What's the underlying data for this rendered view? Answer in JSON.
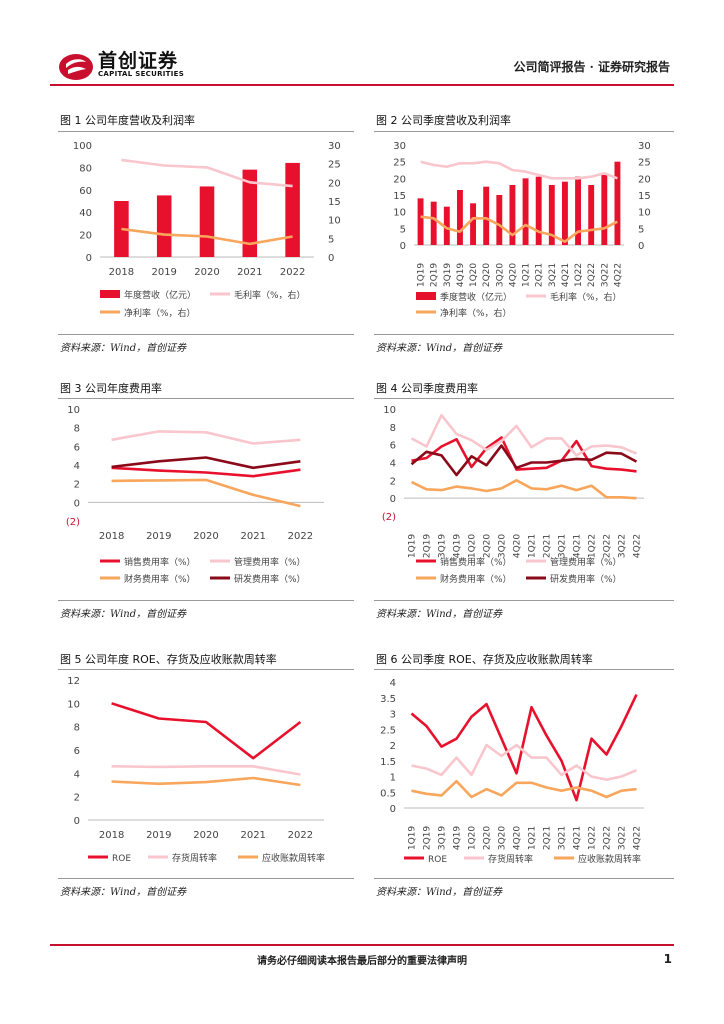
{
  "header": {
    "logo_cn": "首创证券",
    "logo_en": "CAPITAL SECURITIES",
    "report_type": "公司简评报告 · 证券研究报告"
  },
  "footer": {
    "disclaimer": "请务必仔细阅读本报告最后部分的重要法律声明",
    "page": "1"
  },
  "figures": [
    {
      "title": "图 1 公司年度营收及利润率",
      "source": "资料来源：Wind，首创证券"
    },
    {
      "title": "图 2 公司季度营收及利润率",
      "source": "资料来源：Wind，首创证券"
    },
    {
      "title": "图 3 公司年度费用率",
      "source": "资料来源：Wind，首创证券"
    },
    {
      "title": "图 4 公司季度费用率",
      "source": "资料来源：Wind，首创证券"
    },
    {
      "title": "图 5 公司年度 ROE、存货及应收账款周转率",
      "source": "资料来源：Wind，首创证券"
    },
    {
      "title": "图 6 公司季度 ROE、存货及应收账款周转率",
      "source": "资料来源：Wind，首创证券"
    }
  ],
  "colors": {
    "brand": "#c8102e",
    "red": "#e8112d",
    "pink": "#f8c6cc",
    "orange": "#f7a65c",
    "darkred": "#8b0a1a"
  },
  "chart_data": [
    {
      "id": "c1",
      "type": "bar",
      "categories": [
        "2018",
        "2019",
        "2020",
        "2021",
        "2022"
      ],
      "bars": [
        {
          "name": "年度营收（亿元）",
          "values": [
            50,
            55,
            63,
            78,
            84
          ],
          "axis": "left",
          "color": "#e8112d"
        }
      ],
      "series": [
        {
          "name": "毛利率（%，右）",
          "values": [
            26,
            24.5,
            24,
            20,
            19
          ],
          "axis": "right",
          "color": "#f8c6cc"
        },
        {
          "name": "净利率（%，右）",
          "values": [
            7.5,
            6,
            5.5,
            3.5,
            5.5
          ],
          "axis": "right",
          "color": "#f7a65c"
        }
      ],
      "ylim": [
        0,
        100
      ],
      "yticks": [
        0,
        20,
        40,
        60,
        80,
        100
      ],
      "y2lim": [
        0,
        30
      ],
      "y2ticks": [
        0,
        5,
        10,
        15,
        20,
        25,
        30
      ]
    },
    {
      "id": "c2",
      "type": "bar",
      "categories": [
        "1Q19",
        "2Q19",
        "3Q19",
        "4Q19",
        "1Q20",
        "2Q20",
        "3Q20",
        "4Q20",
        "1Q21",
        "2Q21",
        "3Q21",
        "4Q21",
        "1Q22",
        "2Q22",
        "3Q22",
        "4Q22"
      ],
      "bars": [
        {
          "name": "季度营收（亿元）",
          "values": [
            14,
            13,
            11.5,
            16.5,
            12.5,
            17.5,
            15,
            18,
            20,
            20.5,
            18,
            19,
            20.5,
            18,
            21,
            25
          ],
          "axis": "left",
          "color": "#e8112d"
        }
      ],
      "series": [
        {
          "name": "毛利率（%，右）",
          "values": [
            25,
            24,
            23.5,
            24.5,
            24.5,
            25,
            24.5,
            22.5,
            22,
            21,
            20,
            20,
            20,
            20.5,
            21.5,
            20
          ],
          "axis": "right",
          "color": "#f8c6cc"
        },
        {
          "name": "净利率（%，右）",
          "values": [
            8.5,
            8,
            5,
            4,
            8,
            8,
            6,
            3,
            6,
            4,
            3,
            1,
            4,
            4.5,
            5,
            7
          ],
          "axis": "right",
          "color": "#f7a65c"
        }
      ],
      "ylim": [
        0,
        30
      ],
      "yticks": [
        0,
        5,
        10,
        15,
        20,
        25,
        30
      ],
      "y2lim": [
        0,
        30
      ],
      "y2ticks": [
        0,
        5,
        10,
        15,
        20,
        25,
        30
      ]
    },
    {
      "id": "c3",
      "type": "line",
      "categories": [
        "2018",
        "2019",
        "2020",
        "2021",
        "2022"
      ],
      "series": [
        {
          "name": "销售费用率（%）",
          "values": [
            3.7,
            3.4,
            3.2,
            2.8,
            3.5
          ],
          "color": "#e8112d"
        },
        {
          "name": "管理费用率（%）",
          "values": [
            6.7,
            7.6,
            7.5,
            6.3,
            6.7
          ],
          "color": "#f8c6cc"
        },
        {
          "name": "财务费用率（%）",
          "values": [
            2.3,
            2.35,
            2.4,
            0.8,
            -0.4
          ],
          "color": "#f7a65c"
        },
        {
          "name": "研发费用率（%）",
          "values": [
            3.8,
            4.4,
            4.8,
            3.7,
            4.4
          ],
          "color": "#8b0a1a"
        }
      ],
      "ylim": [
        -2,
        10
      ],
      "yticks": [
        0,
        2,
        4,
        6,
        8,
        10
      ],
      "neg_label": "(2)"
    },
    {
      "id": "c4",
      "type": "line",
      "categories": [
        "1Q19",
        "2Q19",
        "3Q19",
        "4Q19",
        "1Q20",
        "2Q20",
        "3Q20",
        "4Q20",
        "1Q21",
        "2Q21",
        "3Q21",
        "4Q21",
        "1Q22",
        "2Q22",
        "3Q22",
        "4Q22"
      ],
      "series": [
        {
          "name": "销售费用率（%）",
          "values": [
            4.2,
            4.5,
            5.8,
            6.6,
            3.5,
            5.6,
            6.8,
            3.2,
            3.3,
            3.4,
            4.2,
            6.4,
            3.6,
            3.3,
            3.2,
            3.0
          ],
          "color": "#e8112d"
        },
        {
          "name": "管理费用率（%）",
          "values": [
            6.7,
            5.8,
            9.3,
            7.2,
            6.5,
            5.4,
            6.4,
            8.1,
            5.7,
            6.7,
            6.7,
            4.8,
            5.8,
            5.9,
            5.7,
            5.0
          ],
          "color": "#f8c6cc"
        },
        {
          "name": "财务费用率（%）",
          "values": [
            1.8,
            1.0,
            0.9,
            1.3,
            1.1,
            0.8,
            1.1,
            2.0,
            1.1,
            1.0,
            1.4,
            0.9,
            1.4,
            0.1,
            0.1,
            0.0
          ],
          "color": "#f7a65c"
        },
        {
          "name": "研发费用率（%）",
          "values": [
            3.8,
            5.2,
            4.8,
            2.6,
            4.7,
            3.7,
            5.9,
            3.4,
            4.0,
            4.0,
            4.2,
            4.4,
            4.3,
            5.1,
            5.0,
            4.1
          ],
          "color": "#8b0a1a"
        }
      ],
      "ylim": [
        -2,
        10
      ],
      "yticks": [
        0,
        2,
        4,
        6,
        8,
        10
      ],
      "neg_label": "(2)"
    },
    {
      "id": "c5",
      "type": "line",
      "categories": [
        "2018",
        "2019",
        "2020",
        "2021",
        "2022"
      ],
      "series": [
        {
          "name": "ROE",
          "values": [
            10,
            8.7,
            8.4,
            5.3,
            8.4
          ],
          "color": "#e8112d"
        },
        {
          "name": "存货周转率",
          "values": [
            4.6,
            4.55,
            4.6,
            4.6,
            3.9
          ],
          "color": "#f8c6cc"
        },
        {
          "name": "应收账款周转率",
          "values": [
            3.3,
            3.1,
            3.25,
            3.6,
            3.0
          ],
          "color": "#f7a65c"
        }
      ],
      "ylim": [
        0,
        12
      ],
      "yticks": [
        0,
        2,
        4,
        6,
        8,
        10,
        12
      ]
    },
    {
      "id": "c6",
      "type": "line",
      "categories": [
        "1Q19",
        "2Q19",
        "3Q19",
        "4Q19",
        "1Q20",
        "2Q20",
        "3Q20",
        "4Q20",
        "1Q21",
        "2Q21",
        "3Q21",
        "4Q21",
        "1Q22",
        "2Q22",
        "3Q22",
        "4Q22"
      ],
      "series": [
        {
          "name": "ROE",
          "values": [
            3.0,
            2.6,
            1.95,
            2.2,
            2.9,
            3.3,
            2.2,
            1.1,
            3.2,
            2.3,
            1.5,
            0.25,
            2.2,
            1.7,
            2.6,
            3.6
          ],
          "color": "#e8112d"
        },
        {
          "name": "存货周转率",
          "values": [
            1.35,
            1.25,
            1.05,
            1.6,
            1.05,
            2.0,
            1.65,
            2.0,
            1.6,
            1.6,
            1.05,
            1.35,
            1.0,
            0.9,
            1.0,
            1.2
          ],
          "color": "#f8c6cc"
        },
        {
          "name": "应收账款周转率",
          "values": [
            0.55,
            0.45,
            0.4,
            0.85,
            0.35,
            0.6,
            0.4,
            0.8,
            0.8,
            0.65,
            0.55,
            0.65,
            0.55,
            0.35,
            0.55,
            0.6
          ],
          "color": "#f7a65c"
        }
      ],
      "ylim": [
        0,
        4
      ],
      "yticks": [
        0,
        0.5,
        1,
        1.5,
        2,
        2.5,
        3,
        3.5,
        4
      ]
    }
  ]
}
